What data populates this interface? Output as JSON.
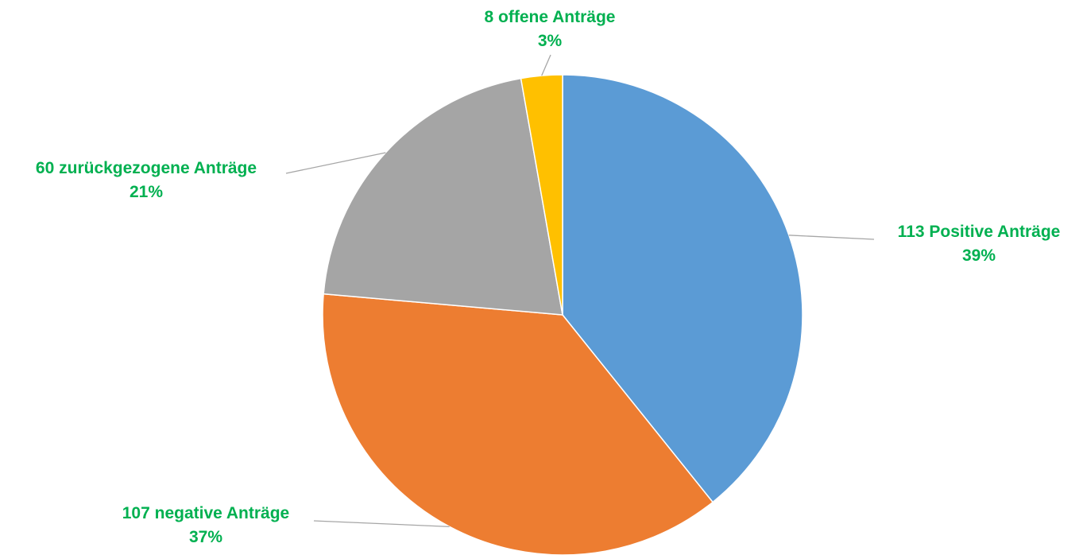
{
  "chart_data": {
    "type": "pie",
    "title": "",
    "start_angle_deg": 0,
    "direction": "clockwise",
    "label_color": "#00B050",
    "leader_color": "#A6A6A6",
    "slice_border_color": "#FFFFFF",
    "slices": [
      {
        "label": "113 Positive Anträge",
        "count": 113,
        "percent_label": "39%",
        "color": "#5B9BD5"
      },
      {
        "label": "107 negative Anträge",
        "count": 107,
        "percent_label": "37%",
        "color": "#ED7D31"
      },
      {
        "label": "60 zurückgezogene Anträge",
        "count": 60,
        "percent_label": "21%",
        "color": "#A5A5A5"
      },
      {
        "label": "8 offene Anträge",
        "count": 8,
        "percent_label": "3%",
        "color": "#FFC000"
      }
    ]
  }
}
